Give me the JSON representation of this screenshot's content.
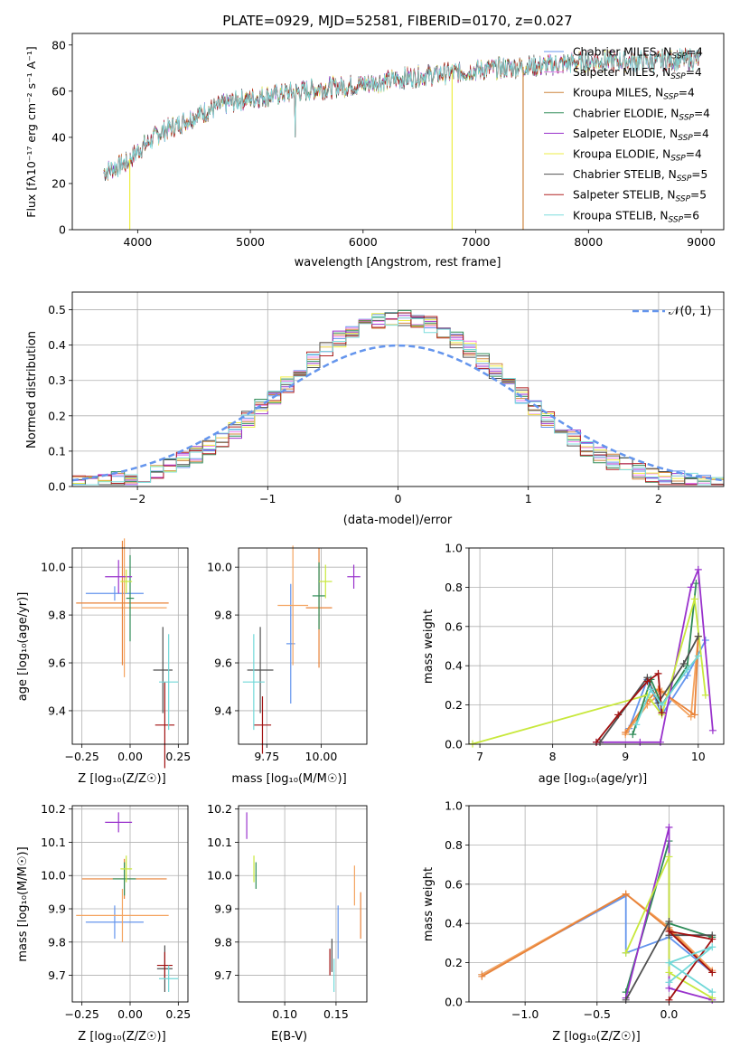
{
  "figure": {
    "title": "PLATE=0929, MJD=52581, FIBERID=0170, z=0.027",
    "colors": [
      "#6495ed",
      "#ee82ee",
      "#cd853f",
      "#2e8b57",
      "#9932cc",
      "#eeee44",
      "#505050",
      "#b22222",
      "#7fdddd"
    ],
    "thick_colors": [
      "#6495ed",
      "#f4a460",
      "#e8833a",
      "#2e8b57",
      "#9932cc",
      "#c8e83c",
      "#505050",
      "#a01010",
      "#70d8d8"
    ]
  },
  "chart_data": [
    {
      "id": "spectrum",
      "type": "line",
      "xlabel": "wavelength [Angstrom, rest frame]",
      "ylabel": "Flux [fλ10⁻¹⁷ erg cm⁻² s⁻¹ A⁻¹]",
      "xlim": [
        3420,
        9200
      ],
      "ylim": [
        0,
        85
      ],
      "xticks": [
        4000,
        5000,
        6000,
        7000,
        8000,
        9000
      ],
      "yticks": [
        0,
        20,
        40,
        60,
        80
      ],
      "grid": false,
      "legend_position": "top-right",
      "legend": [
        "Chabrier MILES, N_SSP=4",
        "Salpeter MILES, N_SSP=4",
        "Kroupa MILES, N_SSP=4",
        "Chabrier ELODIE, N_SSP=4",
        "Salpeter ELODIE, N_SSP=4",
        "Kroupa ELODIE, N_SSP=4",
        "Chabrier STELIB, N_SSP=5",
        "Salpeter STELIB, N_SSP=5",
        "Kroupa STELIB, N_SSP=6"
      ],
      "continuum": [
        [
          3700,
          25
        ],
        [
          3900,
          29
        ],
        [
          4000,
          34
        ],
        [
          4200,
          42
        ],
        [
          4500,
          49
        ],
        [
          4800,
          55
        ],
        [
          5000,
          57
        ],
        [
          5300,
          59
        ],
        [
          5600,
          61
        ],
        [
          6000,
          63
        ],
        [
          6400,
          66
        ],
        [
          6800,
          68
        ],
        [
          7200,
          70
        ],
        [
          7600,
          71
        ],
        [
          8000,
          73
        ],
        [
          8500,
          73
        ],
        [
          9000,
          74
        ],
        [
          9200,
          73
        ]
      ],
      "series_ranges": [
        [
          3700,
          9000
        ],
        [
          3700,
          9000
        ],
        [
          3700,
          7420
        ],
        [
          3700,
          9000
        ],
        [
          3700,
          9000
        ],
        [
          3700,
          9000
        ],
        [
          3700,
          9000
        ],
        [
          3700,
          9000
        ],
        [
          3700,
          9000
        ]
      ],
      "dips": [
        {
          "x": 3930,
          "to": 0
        },
        {
          "x": 6790,
          "to": 0
        },
        {
          "x": 7420,
          "to": 0
        }
      ]
    },
    {
      "id": "residual_hist",
      "type": "histogram",
      "xlabel": "(data-model)/error",
      "ylabel": "Normed distribution",
      "xlim": [
        -2.5,
        2.5
      ],
      "ylim": [
        0,
        0.55
      ],
      "xticks": [
        -2,
        -1,
        0,
        1,
        2
      ],
      "yticks": [
        0.0,
        0.1,
        0.2,
        0.3,
        0.4,
        0.5
      ],
      "grid": true,
      "legend_position": "top-right",
      "gaussian_label": "𝒩(0, 1)",
      "bin_width": 0.1
    },
    {
      "id": "age_vs_Z",
      "type": "errorbar",
      "xlabel": "Z [log₁₀(Z/Z☉)]",
      "ylabel": "age  [log₁₀(age/yr)]",
      "xlim": [
        -0.3,
        0.3
      ],
      "ylim": [
        9.26,
        10.08
      ],
      "xticks": [
        -0.25,
        0.0,
        0.25
      ],
      "xticklabels": [
        "−0.25",
        "0.00",
        "0.25"
      ],
      "yticks": [
        9.4,
        9.6,
        9.8,
        10.0
      ],
      "grid": true,
      "points": [
        {
          "x": -0.08,
          "y": 9.89,
          "xerr": 0.15,
          "yerr": 0.03
        },
        {
          "x": -0.03,
          "y": 9.83,
          "xerr": 0.22,
          "yerr": 0.29
        },
        {
          "x": -0.04,
          "y": 9.85,
          "xerr": 0.24,
          "yerr": 0.26
        },
        {
          "x": 0.0,
          "y": 9.87,
          "xerr": 0.02,
          "yerr": 0.18
        },
        {
          "x": -0.06,
          "y": 9.96,
          "xerr": 0.07,
          "yerr": 0.07
        },
        {
          "x": -0.02,
          "y": 9.94,
          "xerr": 0.03,
          "yerr": 0.05
        },
        {
          "x": 0.17,
          "y": 9.57,
          "xerr": 0.05,
          "yerr": 0.18
        },
        {
          "x": 0.18,
          "y": 9.34,
          "xerr": 0.05,
          "yerr": 0.18
        },
        {
          "x": 0.2,
          "y": 9.52,
          "xerr": 0.05,
          "yerr": 0.2
        }
      ]
    },
    {
      "id": "age_vs_mass",
      "type": "errorbar",
      "xlabel": "mass [log₁₀(M/M☉)]",
      "xlim": [
        9.62,
        10.21
      ],
      "ylim": [
        9.26,
        10.08
      ],
      "xticks": [
        9.75,
        10.0
      ],
      "xticklabels": [
        "9.75",
        "10.00"
      ],
      "yticks": [
        9.4,
        9.6,
        9.8,
        10.0
      ],
      "grid": true,
      "points": [
        {
          "x": 9.86,
          "y": 9.68,
          "xerr": 0.02,
          "yerr": 0.25
        },
        {
          "x": 9.87,
          "y": 9.84,
          "xerr": 0.07,
          "yerr": 0.25
        },
        {
          "x": 9.99,
          "y": 9.83,
          "xerr": 0.06,
          "yerr": 0.25
        },
        {
          "x": 9.99,
          "y": 9.88,
          "xerr": 0.03,
          "yerr": 0.14
        },
        {
          "x": 10.15,
          "y": 9.96,
          "xerr": 0.03,
          "yerr": 0.05
        },
        {
          "x": 10.02,
          "y": 9.94,
          "xerr": 0.03,
          "yerr": 0.07
        },
        {
          "x": 9.72,
          "y": 9.57,
          "xerr": 0.06,
          "yerr": 0.18
        },
        {
          "x": 9.73,
          "y": 9.34,
          "xerr": 0.04,
          "yerr": 0.12
        },
        {
          "x": 9.69,
          "y": 9.52,
          "xerr": 0.05,
          "yerr": 0.2
        }
      ]
    },
    {
      "id": "mass_weight_vs_age",
      "type": "line",
      "xlabel": "age  [log₁₀(age/yr)]",
      "ylabel": "mass weight",
      "xlim": [
        6.85,
        10.35
      ],
      "ylim": [
        0,
        1.0
      ],
      "xticks": [
        7,
        8,
        9,
        10
      ],
      "yticks": [
        0.0,
        0.2,
        0.4,
        0.6,
        0.8,
        1.0
      ],
      "grid": true,
      "series": [
        {
          "points": [
            [
              9.05,
              0.08
            ],
            [
              9.3,
              0.33
            ],
            [
              9.5,
              0.15
            ],
            [
              9.85,
              0.35
            ],
            [
              10.1,
              0.53
            ]
          ]
        },
        {
          "points": [
            [
              9.0,
              0.05
            ],
            [
              9.3,
              0.2
            ],
            [
              9.5,
              0.27
            ],
            [
              9.9,
              0.14
            ],
            [
              10.0,
              0.55
            ]
          ]
        },
        {
          "points": [
            [
              9.0,
              0.06
            ],
            [
              9.3,
              0.22
            ],
            [
              9.45,
              0.28
            ],
            [
              9.95,
              0.15
            ],
            [
              10.0,
              0.55
            ]
          ]
        },
        {
          "points": [
            [
              9.1,
              0.05
            ],
            [
              9.35,
              0.33
            ],
            [
              9.5,
              0.2
            ],
            [
              9.85,
              0.4
            ],
            [
              9.97,
              0.82
            ]
          ]
        },
        {
          "points": [
            [
              8.6,
              0.01
            ],
            [
              9.2,
              0.01
            ],
            [
              9.48,
              0.01
            ],
            [
              9.9,
              0.8
            ],
            [
              10.0,
              0.89
            ],
            [
              10.2,
              0.07
            ]
          ]
        },
        {
          "points": [
            [
              6.9,
              0.002
            ],
            [
              9.3,
              0.25
            ],
            [
              9.5,
              0.15
            ],
            [
              9.95,
              0.74
            ],
            [
              10.1,
              0.25
            ]
          ]
        },
        {
          "points": [
            [
              8.65,
              0.01
            ],
            [
              9.3,
              0.34
            ],
            [
              9.45,
              0.21
            ],
            [
              9.8,
              0.41
            ],
            [
              10.0,
              0.55
            ]
          ]
        },
        {
          "points": [
            [
              8.6,
              0.01
            ],
            [
              8.9,
              0.15
            ],
            [
              9.3,
              0.32
            ],
            [
              9.45,
              0.36
            ],
            [
              9.5,
              0.16
            ]
          ]
        },
        {
          "points": [
            [
              9.15,
              0.1
            ],
            [
              9.35,
              0.28
            ],
            [
              9.5,
              0.2
            ],
            [
              9.85,
              0.38
            ],
            [
              10.0,
              0.45
            ]
          ]
        }
      ]
    },
    {
      "id": "mass_vs_Z",
      "type": "errorbar",
      "xlabel": "Z [log₁₀(Z/Z☉)]",
      "ylabel": "mass [log₁₀(M/M☉)]",
      "xlim": [
        -0.3,
        0.3
      ],
      "ylim": [
        9.62,
        10.21
      ],
      "xticks": [
        -0.25,
        0.0,
        0.25
      ],
      "xticklabels": [
        "−0.25",
        "0.00",
        "0.25"
      ],
      "yticks": [
        9.7,
        9.8,
        9.9,
        10.0,
        10.1,
        10.2
      ],
      "grid": true,
      "points": [
        {
          "x": -0.08,
          "y": 9.86,
          "xerr": 0.15,
          "yerr": 0.05
        },
        {
          "x": -0.04,
          "y": 9.88,
          "xerr": 0.24,
          "yerr": 0.08
        },
        {
          "x": -0.03,
          "y": 9.99,
          "xerr": 0.22,
          "yerr": 0.06
        },
        {
          "x": -0.03,
          "y": 9.99,
          "xerr": 0.06,
          "yerr": 0.05
        },
        {
          "x": -0.06,
          "y": 10.16,
          "xerr": 0.07,
          "yerr": 0.03
        },
        {
          "x": -0.02,
          "y": 10.02,
          "xerr": 0.03,
          "yerr": 0.04
        },
        {
          "x": 0.18,
          "y": 9.72,
          "xerr": 0.04,
          "yerr": 0.07
        },
        {
          "x": 0.18,
          "y": 9.73,
          "xerr": 0.04,
          "yerr": 0.04
        },
        {
          "x": 0.2,
          "y": 9.69,
          "xerr": 0.05,
          "yerr": 0.04
        }
      ]
    },
    {
      "id": "mass_vs_ebv",
      "type": "errorbar",
      "xlabel": "E(B-V)",
      "xlim": [
        0.055,
        0.18
      ],
      "ylim": [
        9.62,
        10.21
      ],
      "xticks": [
        0.1,
        0.15
      ],
      "xticklabels": [
        "0.10",
        "0.15"
      ],
      "yticks": [
        9.7,
        9.8,
        9.9,
        10.0,
        10.1,
        10.2
      ],
      "grid": true,
      "points": [
        {
          "x": 0.152,
          "y": 9.83,
          "xerr": 0.0,
          "yerr": 0.08
        },
        {
          "x": 0.168,
          "y": 9.97,
          "xerr": 0.0,
          "yerr": 0.06
        },
        {
          "x": 0.174,
          "y": 9.88,
          "xerr": 0.0,
          "yerr": 0.07
        },
        {
          "x": 0.072,
          "y": 10.0,
          "xerr": 0.0,
          "yerr": 0.04
        },
        {
          "x": 0.063,
          "y": 10.15,
          "xerr": 0.0,
          "yerr": 0.04
        },
        {
          "x": 0.07,
          "y": 10.02,
          "xerr": 0.0,
          "yerr": 0.04
        },
        {
          "x": 0.146,
          "y": 9.76,
          "xerr": 0.0,
          "yerr": 0.05
        },
        {
          "x": 0.144,
          "y": 9.74,
          "xerr": 0.0,
          "yerr": 0.04
        },
        {
          "x": 0.148,
          "y": 9.7,
          "xerr": 0.0,
          "yerr": 0.05
        }
      ]
    },
    {
      "id": "mass_weight_vs_Z",
      "type": "line",
      "xlabel": "Z [log₁₀(Z/Z☉)]",
      "ylabel": "mass weight",
      "xlim": [
        -1.39,
        0.38
      ],
      "ylim": [
        0,
        1.0
      ],
      "xticks": [
        -1.0,
        -0.5,
        0.0
      ],
      "xticklabels": [
        "−1.0",
        "−0.5",
        "0.0"
      ],
      "yticks": [
        0.0,
        0.2,
        0.4,
        0.6,
        0.8,
        1.0
      ],
      "grid": true,
      "series": [
        {
          "points": [
            [
              -1.3,
              0.14
            ],
            [
              -0.3,
              0.54
            ],
            [
              -0.3,
              0.25
            ],
            [
              0.0,
              0.33
            ],
            [
              0.3,
              0.15
            ]
          ]
        },
        {
          "points": [
            [
              -1.3,
              0.14
            ],
            [
              -0.3,
              0.55
            ],
            [
              0.0,
              0.38
            ],
            [
              0.3,
              0.16
            ]
          ]
        },
        {
          "points": [
            [
              -1.3,
              0.13
            ],
            [
              -0.3,
              0.55
            ],
            [
              0.0,
              0.37
            ],
            [
              0.3,
              0.15
            ]
          ]
        },
        {
          "points": [
            [
              -0.3,
              0.05
            ],
            [
              0.0,
              0.82
            ],
            [
              0.0,
              0.4
            ],
            [
              0.3,
              0.33
            ]
          ]
        },
        {
          "points": [
            [
              -0.3,
              0.02
            ],
            [
              0.0,
              0.89
            ],
            [
              0.0,
              0.07
            ],
            [
              0.3,
              0.01
            ]
          ]
        },
        {
          "points": [
            [
              -0.3,
              0.25
            ],
            [
              0.0,
              0.74
            ],
            [
              0.0,
              0.15
            ],
            [
              0.3,
              0.02
            ]
          ]
        },
        {
          "points": [
            [
              -0.3,
              0.01
            ],
            [
              0.0,
              0.41
            ],
            [
              0.0,
              0.34
            ],
            [
              0.3,
              0.34
            ]
          ]
        },
        {
          "points": [
            [
              0.0,
              0.01
            ],
            [
              0.3,
              0.32
            ],
            [
              0.0,
              0.36
            ],
            [
              0.3,
              0.15
            ]
          ]
        },
        {
          "points": [
            [
              0.0,
              0.1
            ],
            [
              0.3,
              0.28
            ],
            [
              0.0,
              0.2
            ],
            [
              0.3,
              0.05
            ]
          ]
        }
      ]
    }
  ]
}
